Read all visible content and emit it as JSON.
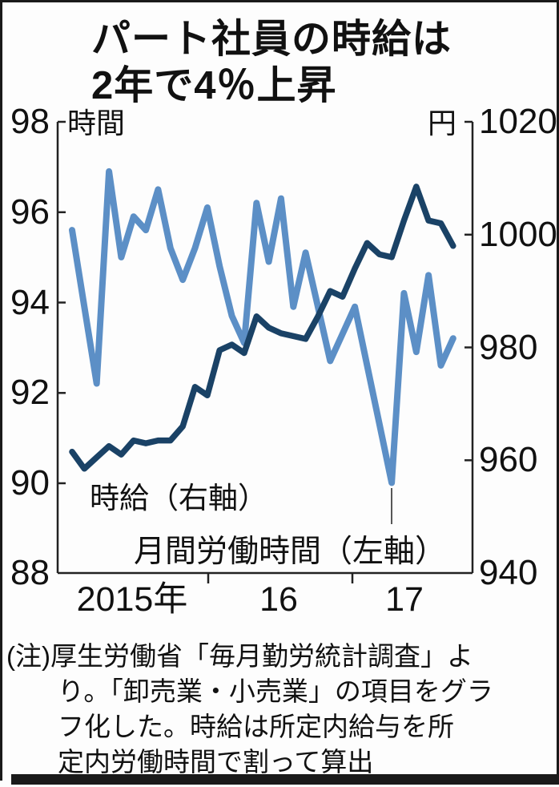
{
  "title": {
    "line1": "パート社員の時給は",
    "line2": "2年で4％上昇"
  },
  "axes": {
    "left": {
      "unit": "時間",
      "ticks": [
        "98",
        "96",
        "94",
        "92",
        "90",
        "88"
      ]
    },
    "right": {
      "unit": "円",
      "ticks": [
        "1020",
        "1000",
        "980",
        "960",
        "940"
      ]
    },
    "x": {
      "labels": [
        "2015年",
        "16",
        "17"
      ]
    }
  },
  "series_labels": {
    "wage": "時給（右軸）",
    "hours": "月間労働時間（左軸）"
  },
  "note": {
    "lines": [
      "(注)厚生労働省「毎月勤労統計調査」よ",
      "り。「卸売業・小売業」の項目をグラ",
      "フ化した。時給は所定内給与を所",
      "定内労働時間で割って算出"
    ]
  },
  "colors": {
    "hours_line": "#5c8fc6",
    "wage_line": "#1a4266",
    "axis": "#222222",
    "text": "#111111",
    "leader": "#444444"
  },
  "chart_data": {
    "type": "line",
    "title": "パート社員の時給は2年で4％上昇",
    "x_months": [
      "2014-12",
      "2015-01",
      "2015-02",
      "2015-03",
      "2015-04",
      "2015-05",
      "2015-06",
      "2015-07",
      "2015-08",
      "2015-09",
      "2015-10",
      "2015-11",
      "2015-12",
      "2016-01",
      "2016-02",
      "2016-03",
      "2016-04",
      "2016-05",
      "2016-06",
      "2016-07",
      "2016-08",
      "2016-09",
      "2016-10",
      "2016-11",
      "2016-12",
      "2017-01",
      "2017-02",
      "2017-03",
      "2017-04",
      "2017-05",
      "2017-06",
      "2017-07"
    ],
    "series": [
      {
        "name": "月間労働時間（左軸）",
        "axis": "left",
        "unit": "時間",
        "values": [
          95.6,
          93.9,
          92.2,
          96.9,
          95.0,
          95.9,
          95.6,
          96.5,
          95.2,
          94.5,
          95.2,
          96.1,
          94.8,
          93.7,
          93.1,
          96.2,
          94.9,
          96.3,
          93.9,
          95.1,
          93.9,
          92.7,
          93.3,
          93.9,
          92.6,
          91.3,
          90.0,
          94.2,
          92.9,
          94.6,
          92.6,
          93.2
        ]
      },
      {
        "name": "時給（右軸）",
        "axis": "right",
        "unit": "円",
        "values": [
          961.5,
          958.5,
          960.5,
          962.5,
          961,
          963.5,
          963,
          963.5,
          963.5,
          966,
          973,
          971.5,
          979.5,
          980.5,
          979,
          985.5,
          983.5,
          982.5,
          982,
          981.5,
          985.5,
          990,
          989,
          994,
          998.5,
          996.5,
          996,
          1002.5,
          1008.5,
          1002.5,
          1002,
          998
        ]
      }
    ],
    "left_axis": {
      "label": "時間",
      "range": [
        88,
        98
      ],
      "ticks": [
        98,
        96,
        94,
        92,
        90,
        88
      ]
    },
    "right_axis": {
      "label": "円",
      "range": [
        940,
        1020
      ],
      "ticks": [
        1020,
        1000,
        980,
        960,
        940
      ]
    },
    "x_axis": {
      "year_labels": [
        "2015年",
        "16",
        "17"
      ],
      "year_boundary_ticks": [
        "2016-01",
        "2017-01"
      ],
      "grid": false,
      "legend": "inline-labels"
    }
  }
}
